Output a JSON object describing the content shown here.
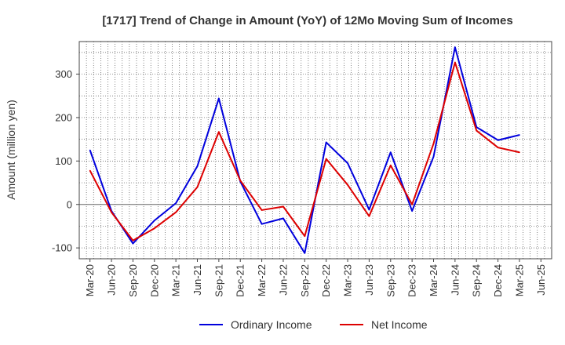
{
  "chart_data": {
    "type": "line",
    "title": "[1717]  Trend of Change in Amount (YoY) of 12Mo Moving Sum of Incomes",
    "ylabel": "Amount (million yen)",
    "xlabel": "",
    "ylim": [
      -125,
      375
    ],
    "yticks": [
      -100,
      0,
      100,
      200,
      300
    ],
    "x_tick_labels": [
      "Mar-20",
      "Jun-20",
      "Sep-20",
      "Dec-20",
      "Mar-21",
      "Jun-21",
      "Sep-21",
      "Dec-21",
      "Mar-22",
      "Jun-22",
      "Sep-22",
      "Dec-22",
      "Mar-23",
      "Jun-23",
      "Sep-23",
      "Dec-23",
      "Mar-24",
      "Jun-24",
      "Sep-24",
      "Dec-24",
      "Mar-25",
      "Jun-25"
    ],
    "grid": true,
    "legend_position": "bottom",
    "series": [
      {
        "name": "Ordinary Income",
        "color": "#0000dd",
        "values": [
          125,
          -15,
          -90,
          -37,
          3,
          88,
          244,
          53,
          -45,
          -32,
          -112,
          143,
          95,
          -12,
          120,
          -15,
          110,
          362,
          178,
          148,
          160
        ]
      },
      {
        "name": "Net Income",
        "color": "#dd0000",
        "values": [
          78,
          -18,
          -83,
          -55,
          -18,
          40,
          167,
          55,
          -13,
          -5,
          -73,
          105,
          45,
          -27,
          90,
          0,
          140,
          327,
          170,
          131,
          120
        ]
      }
    ]
  }
}
